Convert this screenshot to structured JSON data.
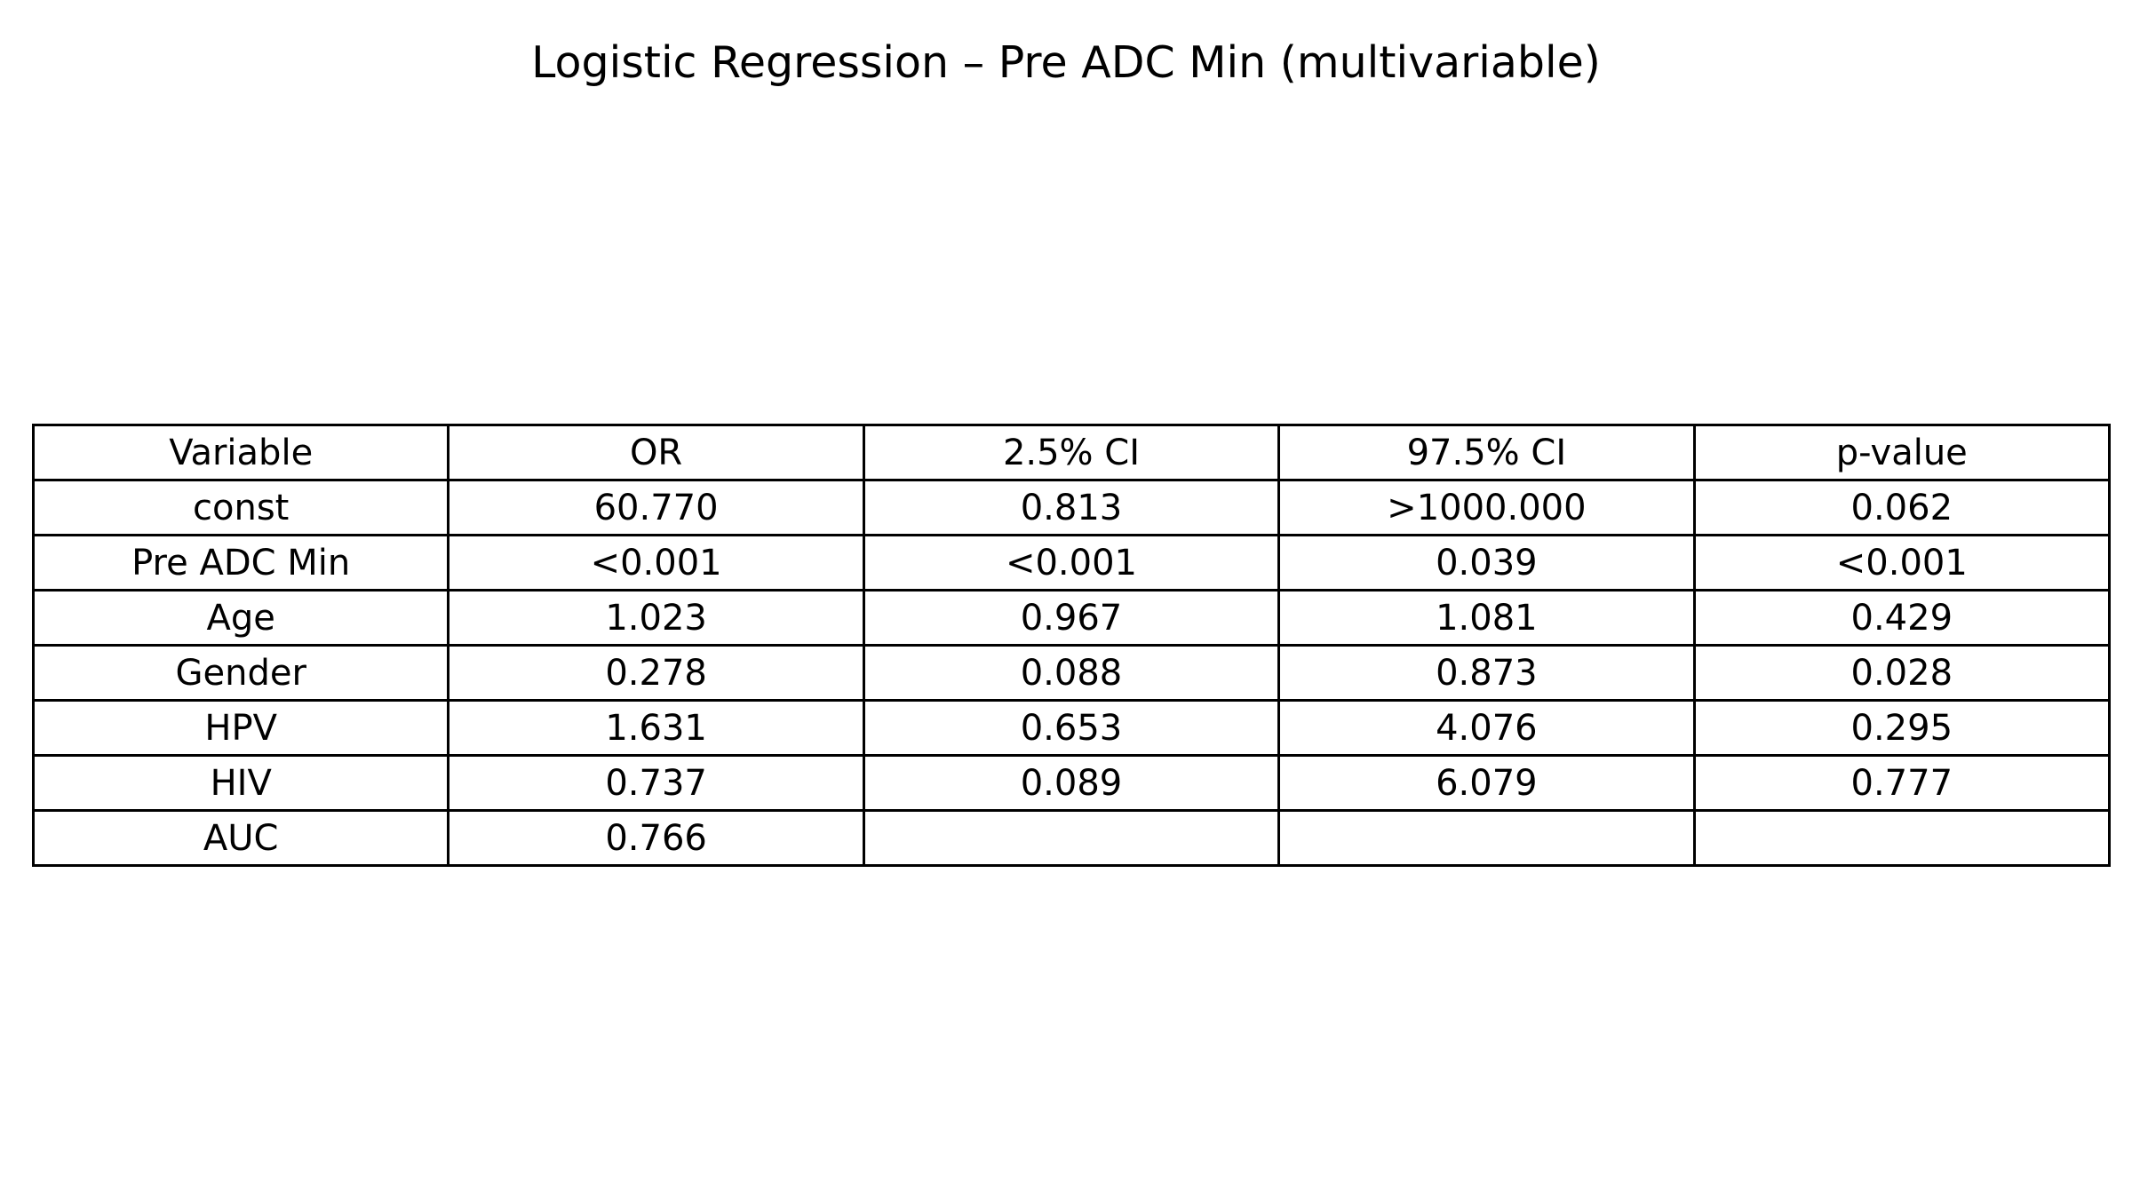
{
  "chart_data": {
    "type": "table",
    "title": "Logistic Regression – Pre ADC Min (multivariable)",
    "columns": [
      "Variable",
      "OR",
      "2.5% CI",
      "97.5% CI",
      "p-value"
    ],
    "rows": [
      [
        "const",
        "60.770",
        "0.813",
        ">1000.000",
        "0.062"
      ],
      [
        "Pre ADC Min",
        "<0.001",
        "<0.001",
        "0.039",
        "<0.001"
      ],
      [
        "Age",
        "1.023",
        "0.967",
        "1.081",
        "0.429"
      ],
      [
        "Gender",
        "0.278",
        "0.088",
        "0.873",
        "0.028"
      ],
      [
        "HPV",
        "1.631",
        "0.653",
        "4.076",
        "0.295"
      ],
      [
        "HIV",
        "0.737",
        "0.089",
        "6.079",
        "0.777"
      ],
      [
        "AUC",
        "0.766",
        "",
        "",
        ""
      ]
    ]
  }
}
